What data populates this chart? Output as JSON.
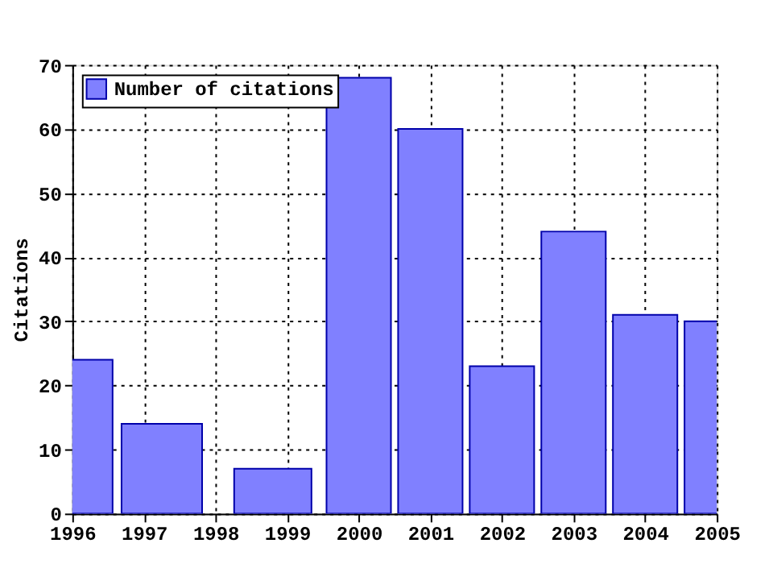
{
  "chart_data": {
    "type": "bar",
    "ylabel": "Citations",
    "x": [
      1996,
      1997.25,
      1998.8,
      2000,
      2001,
      2002,
      2003,
      2004,
      2005
    ],
    "series": [
      {
        "name": "Number of citations",
        "color": "#8080ff",
        "values": [
          24,
          14,
          7,
          68,
          60,
          23,
          44,
          31,
          30
        ]
      }
    ],
    "xlim": [
      1996,
      2005
    ],
    "xticks": [
      1996,
      1997,
      1998,
      1999,
      2000,
      2001,
      2002,
      2003,
      2004,
      2005
    ],
    "ylim": [
      0,
      70
    ],
    "yticks": [
      0,
      10,
      20,
      30,
      40,
      50,
      60,
      70
    ],
    "grid": true,
    "legend": "top left"
  }
}
